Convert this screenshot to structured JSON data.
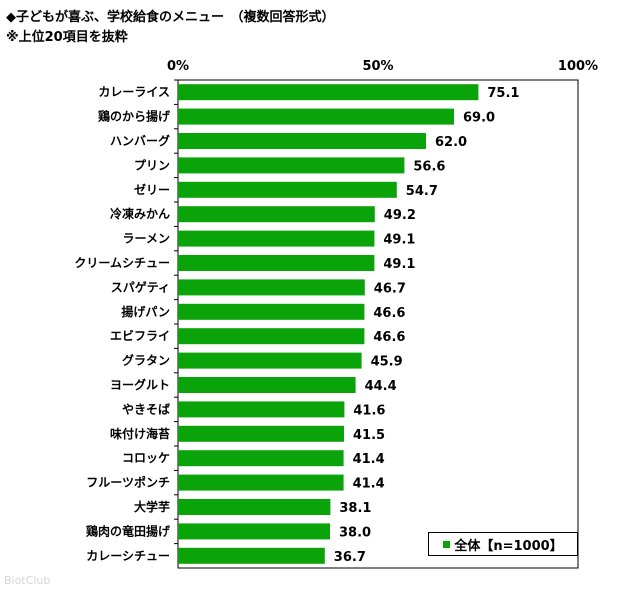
{
  "title": "◆子どもが喜ぶ、学校給食のメニュー　（複数回答形式）",
  "subtitle": "※上位20項目を抜粋",
  "watermark": "BiotClub",
  "colors": {
    "bar": "#0aa30a",
    "axis": "#000000",
    "grid": "#000000"
  },
  "chart_data": {
    "type": "bar",
    "orientation": "horizontal",
    "categories": [
      "カレーライス",
      "鶏のから揚げ",
      "ハンバーグ",
      "プリン",
      "ゼリー",
      "冷凍みかん",
      "ラーメン",
      "クリームシチュー",
      "スパゲティ",
      "揚げパン",
      "エビフライ",
      "グラタン",
      "ヨーグルト",
      "やきそば",
      "味付け海苔",
      "コロッケ",
      "フルーツポンチ",
      "大学芋",
      "鶏肉の竜田揚げ",
      "カレーシチュー"
    ],
    "series": [
      {
        "name": "全体【n=1000】",
        "values": [
          75.1,
          69.0,
          62.0,
          56.6,
          54.7,
          49.2,
          49.1,
          49.1,
          46.7,
          46.6,
          46.6,
          45.9,
          44.4,
          41.6,
          41.5,
          41.4,
          41.4,
          38.1,
          38.0,
          36.7
        ]
      }
    ],
    "data_labels": [
      "75.1",
      "69.0",
      "62.0",
      "56.6",
      "54.7",
      "49.2",
      "49.1",
      "49.1",
      "46.7",
      "46.6",
      "46.6",
      "45.9",
      "44.4",
      "41.6",
      "41.5",
      "41.4",
      "41.4",
      "38.1",
      "38.0",
      "36.7"
    ],
    "xlim": [
      0,
      100
    ],
    "x_ticks": [
      0,
      50,
      100
    ],
    "x_tick_labels": [
      "0%",
      "50%",
      "100%"
    ],
    "legend_position": "bottom-right",
    "grid": false
  }
}
